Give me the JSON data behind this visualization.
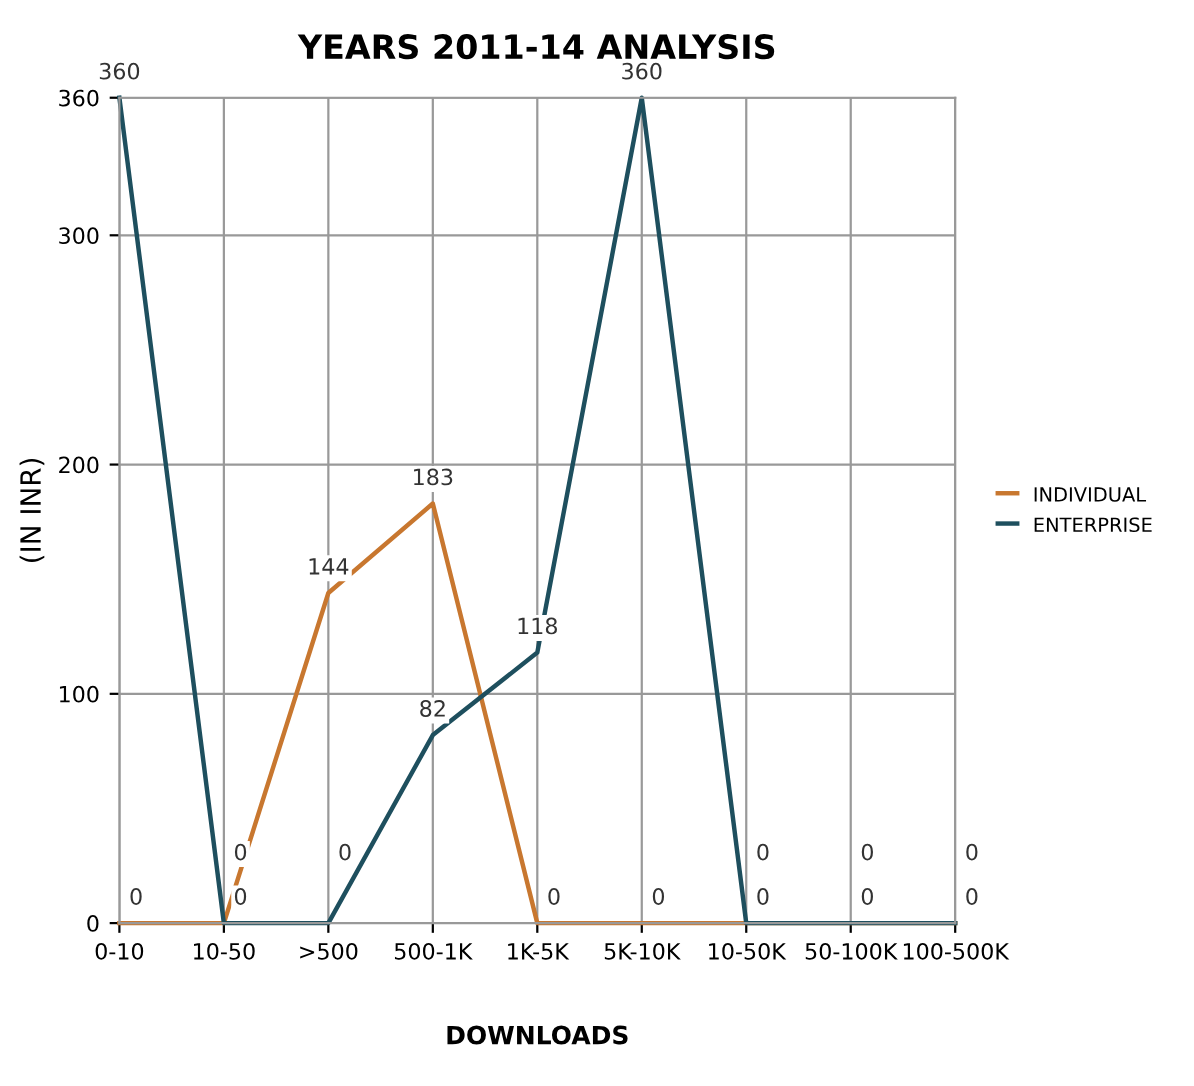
{
  "chart_data": {
    "type": "line",
    "title": "YEARS 2011-14 ANALYSIS",
    "xlabel": "DOWNLOADS",
    "ylabel": "(IN INR)",
    "categories": [
      "0-10",
      "10-50",
      ">500",
      "500-1K",
      "1K-5K",
      "5K-10K",
      "10-50K",
      "50-100K",
      "100-500K"
    ],
    "series": [
      {
        "name": "INDIVIDUAL",
        "color": "#c8772f",
        "values": [
          0,
          0,
          144,
          183,
          0,
          0,
          0,
          0,
          0
        ]
      },
      {
        "name": "ENTERPRISE",
        "color": "#1e4f5e",
        "values": [
          360,
          0,
          0,
          82,
          118,
          360,
          0,
          0,
          0
        ]
      }
    ],
    "ylim": [
      0,
      360
    ],
    "yticks": [
      0,
      100,
      200,
      300,
      360
    ],
    "grid": true,
    "legend": "right",
    "data_labels": true,
    "marker": "none",
    "line_style": "solid"
  }
}
